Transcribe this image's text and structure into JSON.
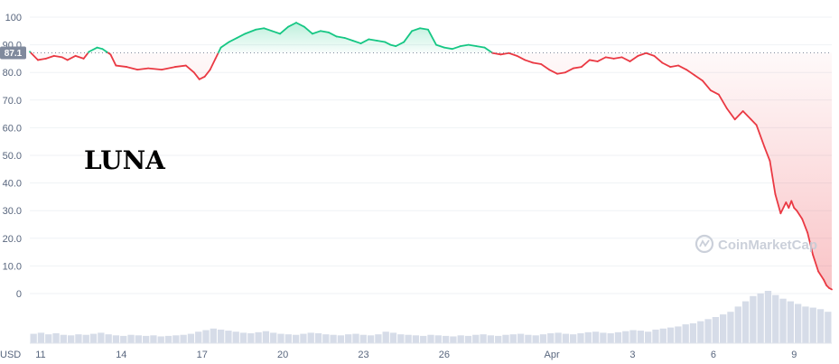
{
  "chart_data": {
    "type": "line",
    "title": "LUNA",
    "currency_label": "USD",
    "watermark": "CoinMarketCap",
    "reference_value": 87.1,
    "reference_label": "87.1",
    "ylim": [
      -10,
      105
    ],
    "y_ticks": [
      {
        "value": 0,
        "label": "0"
      },
      {
        "value": 10,
        "label": "10.0"
      },
      {
        "value": 20,
        "label": "20.0"
      },
      {
        "value": 30,
        "label": "30.0"
      },
      {
        "value": 40,
        "label": "40.0"
      },
      {
        "value": 50,
        "label": "50.0"
      },
      {
        "value": 60,
        "label": "60.0"
      },
      {
        "value": 70,
        "label": "70.0"
      },
      {
        "value": 80,
        "label": "80.0"
      },
      {
        "value": 90,
        "label": "90.0"
      },
      {
        "value": 100,
        "label": "100"
      }
    ],
    "x_ticks": [
      {
        "day": 11,
        "label": "11"
      },
      {
        "day": 14,
        "label": "14"
      },
      {
        "day": 17,
        "label": "17"
      },
      {
        "day": 20,
        "label": "20"
      },
      {
        "day": 23,
        "label": "23"
      },
      {
        "day": 26,
        "label": "26"
      },
      {
        "day": 30,
        "label": "Apr"
      },
      {
        "day": 33,
        "label": "3"
      },
      {
        "day": 36,
        "label": "6"
      },
      {
        "day": 39,
        "label": "9"
      }
    ],
    "x_range": [
      10.6,
      40.4
    ],
    "colors": {
      "up": "#16c784",
      "down": "#ea3943",
      "grid": "#eff2f5",
      "text": "#58667e",
      "volume": "#cfd6e4",
      "badge": "#808a9d"
    },
    "price": {
      "x": [
        10.6,
        10.9,
        11.2,
        11.5,
        11.8,
        12.0,
        12.3,
        12.6,
        12.8,
        13.1,
        13.3,
        13.6,
        13.8,
        14.2,
        14.6,
        15.0,
        15.5,
        16.0,
        16.4,
        16.7,
        16.9,
        17.1,
        17.3,
        17.5,
        17.7,
        18.0,
        18.3,
        18.6,
        19.0,
        19.3,
        19.6,
        19.9,
        20.2,
        20.5,
        20.8,
        21.1,
        21.4,
        21.7,
        22.0,
        22.3,
        22.6,
        22.9,
        23.2,
        23.5,
        23.8,
        24.0,
        24.2,
        24.5,
        24.8,
        25.1,
        25.4,
        25.7,
        26.0,
        26.3,
        26.6,
        26.9,
        27.2,
        27.5,
        27.8,
        28.1,
        28.4,
        28.7,
        29.0,
        29.3,
        29.6,
        29.9,
        30.2,
        30.5,
        30.8,
        31.1,
        31.4,
        31.7,
        32.0,
        32.3,
        32.6,
        32.9,
        33.2,
        33.5,
        33.8,
        34.1,
        34.4,
        34.7,
        35.0,
        35.3,
        35.6,
        35.9,
        36.2,
        36.5,
        36.8,
        37.1,
        37.4,
        37.6,
        37.9,
        38.1,
        38.3,
        38.5,
        38.7,
        38.8,
        38.9,
        39.0,
        39.1,
        39.3,
        39.5,
        39.7,
        39.9,
        40.1,
        40.2,
        40.3,
        40.4
      ],
      "y": [
        87.5,
        84.5,
        85.0,
        86.0,
        85.5,
        84.5,
        86.0,
        85.0,
        87.5,
        89.0,
        88.5,
        86.5,
        82.5,
        82.0,
        81.0,
        81.5,
        81.0,
        82.0,
        82.5,
        80.0,
        77.5,
        78.5,
        81.0,
        85.0,
        89.0,
        91.0,
        92.5,
        94.0,
        95.5,
        96.0,
        95.0,
        94.0,
        96.5,
        98.0,
        96.5,
        94.0,
        95.0,
        94.5,
        93.0,
        92.5,
        91.5,
        90.5,
        92.0,
        91.5,
        91.0,
        90.0,
        89.5,
        91.0,
        95.0,
        96.0,
        95.5,
        90.0,
        89.0,
        88.5,
        89.5,
        90.0,
        89.5,
        89.0,
        87.0,
        86.5,
        87.0,
        86.0,
        84.5,
        83.5,
        83.0,
        81.0,
        79.5,
        80.0,
        81.5,
        82.0,
        84.5,
        84.0,
        85.5,
        85.0,
        85.5,
        84.0,
        86.0,
        87.0,
        86.0,
        83.5,
        82.0,
        82.5,
        81.0,
        79.0,
        77.0,
        73.5,
        72.0,
        67.0,
        63.0,
        66.0,
        63.0,
        61.0,
        53.0,
        48.0,
        36.0,
        29.0,
        33.0,
        31.0,
        33.5,
        31.0,
        30.0,
        27.0,
        22.0,
        14.0,
        8.0,
        5.0,
        3.0,
        2.0,
        1.5
      ]
    },
    "volume": [
      0.18,
      0.2,
      0.17,
      0.19,
      0.16,
      0.15,
      0.17,
      0.16,
      0.18,
      0.2,
      0.17,
      0.15,
      0.14,
      0.16,
      0.15,
      0.14,
      0.15,
      0.13,
      0.14,
      0.15,
      0.16,
      0.18,
      0.22,
      0.25,
      0.28,
      0.26,
      0.24,
      0.22,
      0.2,
      0.19,
      0.21,
      0.23,
      0.2,
      0.18,
      0.17,
      0.16,
      0.18,
      0.2,
      0.19,
      0.17,
      0.16,
      0.15,
      0.17,
      0.18,
      0.16,
      0.15,
      0.17,
      0.22,
      0.2,
      0.17,
      0.16,
      0.15,
      0.14,
      0.16,
      0.15,
      0.14,
      0.13,
      0.15,
      0.14,
      0.16,
      0.17,
      0.15,
      0.14,
      0.16,
      0.17,
      0.18,
      0.16,
      0.15,
      0.17,
      0.19,
      0.2,
      0.18,
      0.17,
      0.19,
      0.21,
      0.22,
      0.2,
      0.19,
      0.21,
      0.23,
      0.25,
      0.24,
      0.22,
      0.26,
      0.28,
      0.3,
      0.32,
      0.36,
      0.38,
      0.42,
      0.46,
      0.5,
      0.55,
      0.6,
      0.7,
      0.8,
      0.9,
      0.95,
      1.0,
      0.92,
      0.85,
      0.8,
      0.75,
      0.7,
      0.68,
      0.65,
      0.6
    ]
  }
}
